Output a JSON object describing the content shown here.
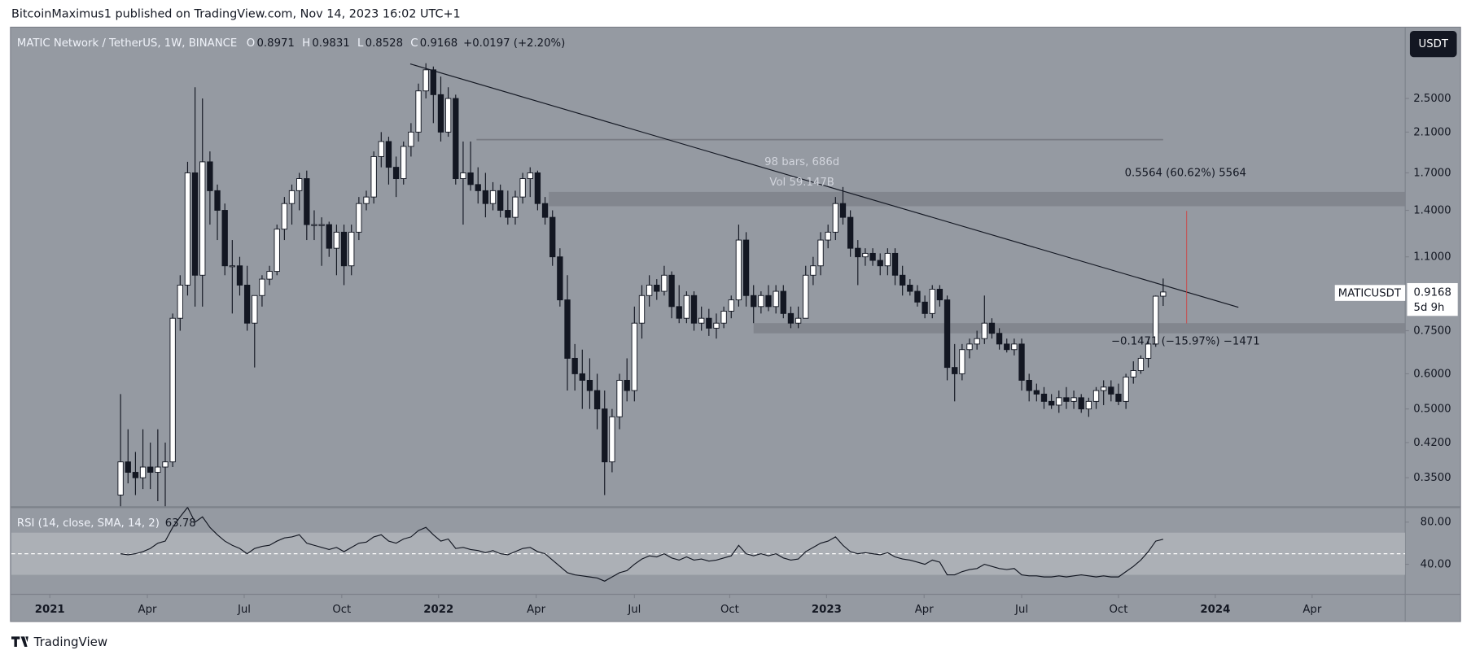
{
  "header": {
    "publisher": "BitcoinMaximus1 published on TradingView.com, Nov 14, 2023 16:02 UTC+1",
    "footer": "TradingView",
    "currency": "USDT",
    "symbol_tag": "MATICUSDT",
    "countdown": "5d 9h"
  },
  "chart_data": [
    {
      "type": "candlestick",
      "title": "MATIC Network / TetherUS, 1W, BINANCE",
      "legend_keys": [
        "O",
        "H",
        "L",
        "C"
      ],
      "change": "+0.0197 (+2.20%)",
      "log_scale": true,
      "ylim": [
        0.302,
        3.6
      ],
      "yticks": [
        {
          "value": 2.5,
          "label": "2.5000"
        },
        {
          "value": 2.1,
          "label": "2.1000"
        },
        {
          "value": 1.7,
          "label": "1.7000"
        },
        {
          "value": 1.4,
          "label": "1.4000"
        },
        {
          "value": 1.1,
          "label": "1.1000"
        },
        {
          "value": 0.75,
          "label": "0.7500"
        },
        {
          "value": 0.6,
          "label": "0.6000"
        },
        {
          "value": 0.5,
          "label": "0.5000"
        },
        {
          "value": 0.42,
          "label": "0.4200"
        },
        {
          "value": 0.35,
          "label": "0.3500"
        }
      ],
      "xlim": [
        -14.66,
        172.5
      ],
      "xticks": [
        {
          "value": -9.5,
          "label": "2021"
        },
        {
          "value": 3.6,
          "label": "Apr"
        },
        {
          "value": 16.6,
          "label": "Jul"
        },
        {
          "value": 29.7,
          "label": "Oct"
        },
        {
          "value": 42.7,
          "label": "2022"
        },
        {
          "value": 55.8,
          "label": "Apr"
        },
        {
          "value": 69.0,
          "label": "Jul"
        },
        {
          "value": 81.8,
          "label": "Oct"
        },
        {
          "value": 94.8,
          "label": "2023"
        },
        {
          "value": 107.9,
          "label": "Apr"
        },
        {
          "value": 121.0,
          "label": "Jul"
        },
        {
          "value": 134.0,
          "label": "Oct"
        },
        {
          "value": 147.0,
          "label": "2024"
        },
        {
          "value": 160.0,
          "label": "Apr"
        }
      ],
      "up_color": "#ffffff",
      "down_color": "#131722",
      "ohlc": [
        [
          0.32,
          0.54,
          0.3,
          0.38
        ],
        [
          0.38,
          0.45,
          0.34,
          0.36
        ],
        [
          0.36,
          0.4,
          0.32,
          0.35
        ],
        [
          0.35,
          0.45,
          0.33,
          0.37
        ],
        [
          0.37,
          0.42,
          0.33,
          0.36
        ],
        [
          0.36,
          0.45,
          0.31,
          0.37
        ],
        [
          0.37,
          0.42,
          0.3,
          0.38
        ],
        [
          0.38,
          0.82,
          0.37,
          0.8
        ],
        [
          0.8,
          1.0,
          0.75,
          0.95
        ],
        [
          0.95,
          1.8,
          0.9,
          1.7
        ],
        [
          1.7,
          2.65,
          0.85,
          1.0
        ],
        [
          1.0,
          2.5,
          0.85,
          1.8
        ],
        [
          1.8,
          1.9,
          1.3,
          1.55
        ],
        [
          1.55,
          1.6,
          1.2,
          1.4
        ],
        [
          1.4,
          1.45,
          1.0,
          1.05
        ],
        [
          1.05,
          1.2,
          0.82,
          1.05
        ],
        [
          1.05,
          1.1,
          0.9,
          0.95
        ],
        [
          0.95,
          1.05,
          0.75,
          0.78
        ],
        [
          0.78,
          0.9,
          0.62,
          0.9
        ],
        [
          0.9,
          1.0,
          0.85,
          0.98
        ],
        [
          0.98,
          1.05,
          0.95,
          1.02
        ],
        [
          1.02,
          1.3,
          1.0,
          1.27
        ],
        [
          1.27,
          1.5,
          1.2,
          1.45
        ],
        [
          1.45,
          1.6,
          1.3,
          1.55
        ],
        [
          1.55,
          1.7,
          1.4,
          1.65
        ],
        [
          1.65,
          1.72,
          1.2,
          1.3
        ],
        [
          1.3,
          1.4,
          1.2,
          1.3
        ],
        [
          1.3,
          1.35,
          1.05,
          1.3
        ],
        [
          1.3,
          1.32,
          1.1,
          1.15
        ],
        [
          1.15,
          1.3,
          1.0,
          1.25
        ],
        [
          1.25,
          1.3,
          0.95,
          1.05
        ],
        [
          1.05,
          1.3,
          1.0,
          1.25
        ],
        [
          1.25,
          1.5,
          1.2,
          1.45
        ],
        [
          1.45,
          1.55,
          1.4,
          1.5
        ],
        [
          1.5,
          1.9,
          1.45,
          1.85
        ],
        [
          1.85,
          2.1,
          1.75,
          2.0
        ],
        [
          2.0,
          2.05,
          1.6,
          1.75
        ],
        [
          1.75,
          1.85,
          1.5,
          1.65
        ],
        [
          1.65,
          2.0,
          1.6,
          1.95
        ],
        [
          1.95,
          2.2,
          1.85,
          2.1
        ],
        [
          2.1,
          2.7,
          2.0,
          2.6
        ],
        [
          2.6,
          3.0,
          2.5,
          2.9
        ],
        [
          2.9,
          2.95,
          2.2,
          2.55
        ],
        [
          2.55,
          2.8,
          2.0,
          2.1
        ],
        [
          2.1,
          2.65,
          2.05,
          2.5
        ],
        [
          2.5,
          2.55,
          1.6,
          1.65
        ],
        [
          1.65,
          2.0,
          1.3,
          1.7
        ],
        [
          1.7,
          2.0,
          1.55,
          1.6
        ],
        [
          1.6,
          1.75,
          1.45,
          1.55
        ],
        [
          1.55,
          1.7,
          1.35,
          1.45
        ],
        [
          1.45,
          1.62,
          1.4,
          1.55
        ],
        [
          1.55,
          1.6,
          1.35,
          1.4
        ],
        [
          1.4,
          1.55,
          1.3,
          1.35
        ],
        [
          1.35,
          1.55,
          1.3,
          1.5
        ],
        [
          1.5,
          1.7,
          1.45,
          1.65
        ],
        [
          1.65,
          1.75,
          1.5,
          1.7
        ],
        [
          1.7,
          1.72,
          1.4,
          1.45
        ],
        [
          1.45,
          1.5,
          1.3,
          1.35
        ],
        [
          1.35,
          1.4,
          1.05,
          1.1
        ],
        [
          1.1,
          1.15,
          0.85,
          0.88
        ],
        [
          0.88,
          1.0,
          0.55,
          0.65
        ],
        [
          0.65,
          0.7,
          0.55,
          0.6
        ],
        [
          0.6,
          0.68,
          0.5,
          0.58
        ],
        [
          0.58,
          0.65,
          0.5,
          0.55
        ],
        [
          0.55,
          0.6,
          0.45,
          0.5
        ],
        [
          0.5,
          0.55,
          0.32,
          0.38
        ],
        [
          0.38,
          0.5,
          0.36,
          0.48
        ],
        [
          0.48,
          0.6,
          0.45,
          0.58
        ],
        [
          0.58,
          0.65,
          0.52,
          0.55
        ],
        [
          0.55,
          0.85,
          0.52,
          0.78
        ],
        [
          0.78,
          0.95,
          0.72,
          0.9
        ],
        [
          0.9,
          1.0,
          0.85,
          0.95
        ],
        [
          0.95,
          0.98,
          0.88,
          0.92
        ],
        [
          0.92,
          1.05,
          0.9,
          1.0
        ],
        [
          1.0,
          1.02,
          0.8,
          0.85
        ],
        [
          0.85,
          0.95,
          0.78,
          0.8
        ],
        [
          0.8,
          0.92,
          0.78,
          0.9
        ],
        [
          0.9,
          0.92,
          0.75,
          0.78
        ],
        [
          0.78,
          0.85,
          0.75,
          0.8
        ],
        [
          0.8,
          0.84,
          0.73,
          0.76
        ],
        [
          0.76,
          0.82,
          0.72,
          0.78
        ],
        [
          0.78,
          0.85,
          0.76,
          0.83
        ],
        [
          0.83,
          0.9,
          0.8,
          0.88
        ],
        [
          0.88,
          1.3,
          0.85,
          1.2
        ],
        [
          1.2,
          1.25,
          0.85,
          0.9
        ],
        [
          0.9,
          0.95,
          0.78,
          0.85
        ],
        [
          0.85,
          0.92,
          0.82,
          0.9
        ],
        [
          0.9,
          0.95,
          0.83,
          0.85
        ],
        [
          0.85,
          0.95,
          0.82,
          0.92
        ],
        [
          0.92,
          0.95,
          0.8,
          0.82
        ],
        [
          0.82,
          0.85,
          0.76,
          0.78
        ],
        [
          0.78,
          0.85,
          0.76,
          0.8
        ],
        [
          0.8,
          1.05,
          0.8,
          1.0
        ],
        [
          1.0,
          1.1,
          0.95,
          1.05
        ],
        [
          1.05,
          1.25,
          1.0,
          1.2
        ],
        [
          1.2,
          1.3,
          1.15,
          1.25
        ],
        [
          1.25,
          1.5,
          1.2,
          1.45
        ],
        [
          1.45,
          1.58,
          1.3,
          1.35
        ],
        [
          1.35,
          1.4,
          1.1,
          1.15
        ],
        [
          1.15,
          1.2,
          0.95,
          1.1
        ],
        [
          1.1,
          1.15,
          1.05,
          1.12
        ],
        [
          1.12,
          1.15,
          1.05,
          1.08
        ],
        [
          1.08,
          1.12,
          1.0,
          1.05
        ],
        [
          1.05,
          1.15,
          1.0,
          1.12
        ],
        [
          1.12,
          1.15,
          0.95,
          1.0
        ],
        [
          1.0,
          1.05,
          0.9,
          0.95
        ],
        [
          0.95,
          0.98,
          0.9,
          0.92
        ],
        [
          0.92,
          0.95,
          0.85,
          0.87
        ],
        [
          0.87,
          0.9,
          0.8,
          0.82
        ],
        [
          0.82,
          0.95,
          0.8,
          0.93
        ],
        [
          0.93,
          0.95,
          0.85,
          0.88
        ],
        [
          0.88,
          0.9,
          0.58,
          0.62
        ],
        [
          0.62,
          0.7,
          0.52,
          0.6
        ],
        [
          0.6,
          0.7,
          0.58,
          0.68
        ],
        [
          0.68,
          0.72,
          0.65,
          0.7
        ],
        [
          0.7,
          0.75,
          0.68,
          0.72
        ],
        [
          0.72,
          0.9,
          0.7,
          0.78
        ],
        [
          0.78,
          0.8,
          0.72,
          0.74
        ],
        [
          0.74,
          0.76,
          0.68,
          0.7
        ],
        [
          0.7,
          0.72,
          0.67,
          0.68
        ],
        [
          0.68,
          0.72,
          0.66,
          0.7
        ],
        [
          0.7,
          0.72,
          0.55,
          0.58
        ],
        [
          0.58,
          0.6,
          0.52,
          0.55
        ],
        [
          0.55,
          0.57,
          0.52,
          0.54
        ],
        [
          0.54,
          0.56,
          0.5,
          0.52
        ],
        [
          0.52,
          0.54,
          0.5,
          0.51
        ],
        [
          0.51,
          0.55,
          0.49,
          0.53
        ],
        [
          0.53,
          0.56,
          0.5,
          0.52
        ],
        [
          0.52,
          0.55,
          0.5,
          0.53
        ],
        [
          0.53,
          0.54,
          0.49,
          0.5
        ],
        [
          0.5,
          0.53,
          0.48,
          0.52
        ],
        [
          0.52,
          0.56,
          0.5,
          0.55
        ],
        [
          0.55,
          0.58,
          0.51,
          0.56
        ],
        [
          0.56,
          0.58,
          0.52,
          0.54
        ],
        [
          0.54,
          0.57,
          0.51,
          0.52
        ],
        [
          0.52,
          0.6,
          0.5,
          0.59
        ],
        [
          0.59,
          0.64,
          0.57,
          0.61
        ],
        [
          0.61,
          0.66,
          0.6,
          0.65
        ],
        [
          0.65,
          0.72,
          0.62,
          0.7
        ],
        [
          0.7,
          0.9,
          0.69,
          0.8971
        ],
        [
          0.8971,
          0.9831,
          0.8528,
          0.9168
        ]
      ],
      "trendline": {
        "x": [
          38.9,
          150.1
        ],
        "y": [
          2.99,
          0.847
        ],
        "color": "#131722"
      },
      "zones": [
        {
          "from": 57.5,
          "low": 1.43,
          "high": 1.54
        },
        {
          "from": 85,
          "low": 0.74,
          "high": 0.78
        }
      ],
      "level": {
        "from": 47.8,
        "to": 140,
        "value": 2.02
      },
      "annotations": [
        {
          "text": "98 bars, 686d",
          "x": 91.5,
          "y": 1.8
        },
        {
          "text": "Vol 59.147B",
          "x": 91.5,
          "y": 1.62
        },
        {
          "text": "0.5564 (60.62%) 5564",
          "x": 143,
          "y": 1.7
        },
        {
          "text": "−0.1471 (−15.97%) −1471",
          "x": 143,
          "y": 0.71
        }
      ]
    },
    {
      "type": "line",
      "title": "RSI (14, close, SMA, 14, 2)",
      "last_label": "63.78",
      "color": "#131722",
      "ylim": [
        12.4,
        94.2
      ],
      "yticks": [
        {
          "value": 80,
          "label": "80.00"
        },
        {
          "value": 40,
          "label": "40.00"
        }
      ],
      "band": [
        30,
        70
      ],
      "midline": 50,
      "values": [
        50,
        49,
        50,
        52,
        55,
        60,
        62,
        75,
        85,
        94,
        80,
        85,
        75,
        68,
        62,
        58,
        55,
        50,
        55,
        57,
        58,
        62,
        65,
        66,
        68,
        60,
        58,
        56,
        54,
        56,
        52,
        56,
        60,
        61,
        66,
        68,
        62,
        60,
        64,
        66,
        72,
        75,
        68,
        62,
        64,
        55,
        56,
        54,
        53,
        51,
        53,
        50,
        49,
        52,
        55,
        56,
        52,
        50,
        44,
        38,
        32,
        30,
        29,
        28,
        27,
        24,
        28,
        32,
        34,
        40,
        45,
        48,
        47,
        50,
        46,
        44,
        47,
        44,
        45,
        43,
        44,
        46,
        48,
        58,
        50,
        48,
        50,
        48,
        50,
        46,
        44,
        45,
        52,
        56,
        60,
        62,
        66,
        58,
        52,
        50,
        51,
        50,
        49,
        51,
        47,
        45,
        44,
        42,
        40,
        44,
        42,
        30,
        30,
        33,
        35,
        36,
        40,
        38,
        36,
        35,
        36,
        30,
        29,
        29,
        28,
        28,
        29,
        28,
        29,
        30,
        29,
        28,
        29,
        28,
        28,
        33,
        38,
        44,
        52,
        62,
        63.78
      ]
    }
  ]
}
